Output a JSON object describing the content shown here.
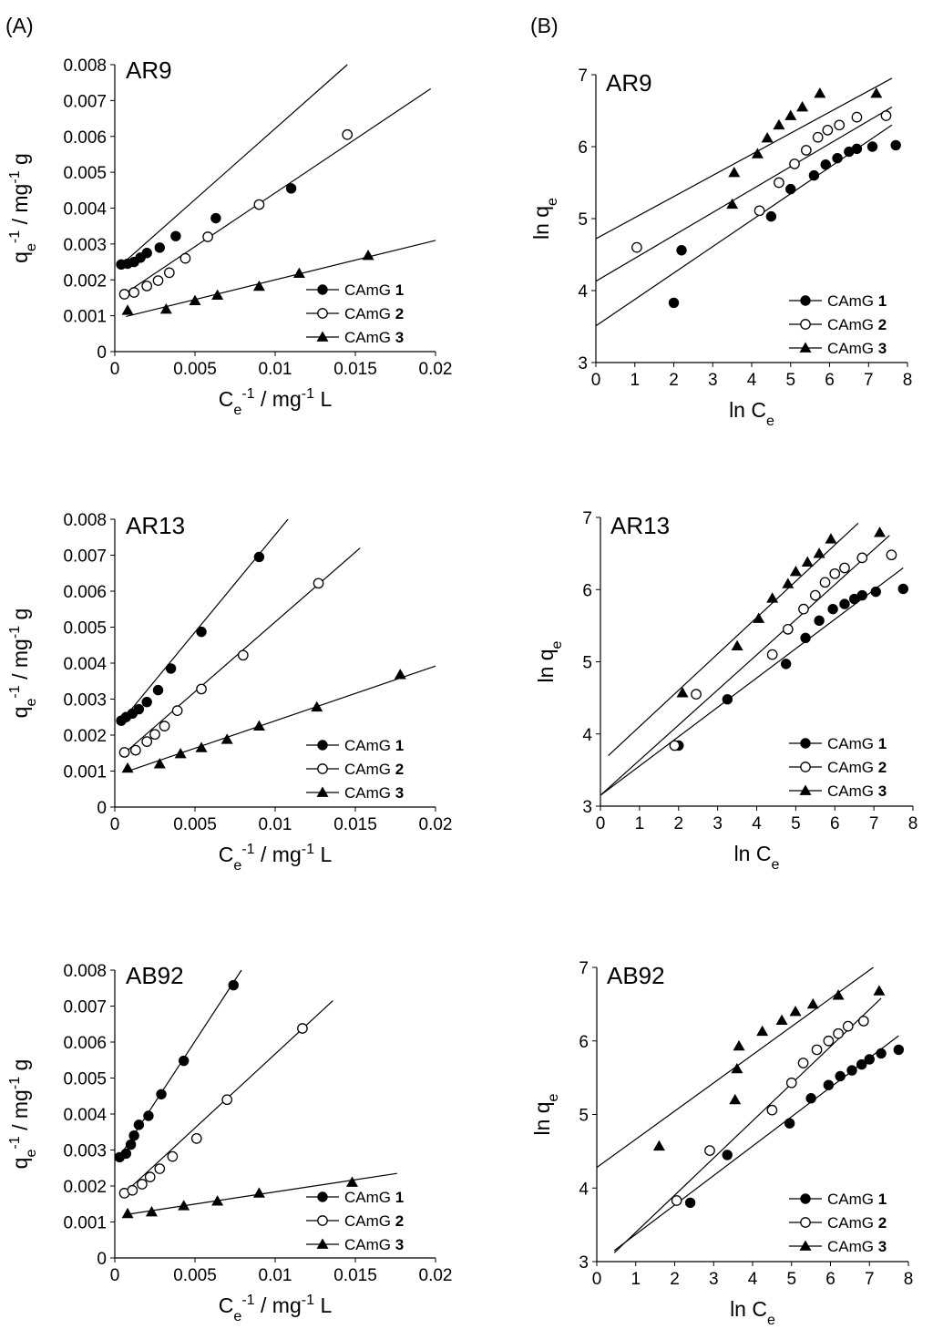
{
  "panel_labels": [
    "(A)",
    "(B)"
  ],
  "chart_data": [
    {
      "id": "A1",
      "type": "scatter",
      "title": "AR9",
      "xlabel": {
        "base": "C",
        "sub": "e",
        "sup": "-1",
        "rest": " / mg",
        "sup2": "-1",
        "rest2": "      L"
      },
      "ylabel": {
        "base": "q",
        "sub": "e",
        "sup": "-1",
        "rest": " / mg",
        "sup2": "-1",
        "rest2": " g"
      },
      "xlim": [
        0,
        0.02
      ],
      "ylim": [
        0,
        0.008
      ],
      "xticks": [
        "0",
        "0.005",
        "0.01",
        "0.015",
        "0.02"
      ],
      "yticks": [
        "0",
        "0.001",
        "0.002",
        "0.003",
        "0.004",
        "0.005",
        "0.006",
        "0.007",
        "0.008"
      ],
      "series": [
        {
          "name": "CAmG",
          "num": "1",
          "marker": "filled-circle",
          "x": [
            0.0004,
            0.0008,
            0.0012,
            0.0016,
            0.002,
            0.0028,
            0.0038,
            0.0063,
            0.011
          ],
          "y": [
            0.00243,
            0.00245,
            0.0025,
            0.00262,
            0.00275,
            0.0029,
            0.00322,
            0.00372,
            0.00455
          ],
          "fit": [
            [
              0.0003,
              0.00238
            ],
            [
              0.0145,
              0.008
            ]
          ]
        },
        {
          "name": "CAmG",
          "num": "2",
          "marker": "open-circle",
          "x": [
            0.0006,
            0.0012,
            0.002,
            0.0027,
            0.0034,
            0.0044,
            0.0058,
            0.009,
            0.0145
          ],
          "y": [
            0.0016,
            0.00165,
            0.00183,
            0.00198,
            0.0022,
            0.0026,
            0.0032,
            0.0041,
            0.00605
          ],
          "fit": [
            [
              0.0004,
              0.00155
            ],
            [
              0.0197,
              0.00733
            ]
          ]
        },
        {
          "name": "CAmG",
          "num": "3",
          "marker": "filled-triangle",
          "x": [
            0.0008,
            0.0032,
            0.005,
            0.0064,
            0.009,
            0.0115,
            0.0158
          ],
          "y": [
            0.00115,
            0.00118,
            0.00142,
            0.00157,
            0.00182,
            0.00218,
            0.00268
          ],
          "fit": [
            [
              0.0007,
              0.00098
            ],
            [
              0.02,
              0.0031
            ]
          ]
        }
      ]
    },
    {
      "id": "B1",
      "type": "scatter",
      "title": "AR9",
      "xlabel": {
        "base": "ln C",
        "sub": "e"
      },
      "ylabel": {
        "base": "ln q",
        "sub": "e"
      },
      "xlim": [
        0,
        8
      ],
      "ylim": [
        3,
        7
      ],
      "xticks": [
        "0",
        "1",
        "2",
        "3",
        "4",
        "5",
        "6",
        "7",
        "8"
      ],
      "yticks": [
        "3",
        "4",
        "5",
        "6",
        "7"
      ],
      "series": [
        {
          "name": "CAmG",
          "num": "1",
          "marker": "filled-circle",
          "x": [
            2.0,
            2.2,
            4.5,
            5.0,
            5.6,
            5.9,
            6.2,
            6.5,
            6.7,
            7.1,
            7.7
          ],
          "y": [
            3.83,
            4.56,
            5.03,
            5.41,
            5.6,
            5.75,
            5.84,
            5.93,
            5.97,
            6.0,
            6.02
          ],
          "fit": [
            [
              0.0,
              3.51
            ],
            [
              7.6,
              6.3
            ]
          ]
        },
        {
          "name": "CAmG",
          "num": "2",
          "marker": "open-circle",
          "x": [
            1.05,
            4.2,
            4.7,
            5.1,
            5.4,
            5.7,
            5.95,
            6.25,
            6.7,
            7.45
          ],
          "y": [
            4.6,
            5.11,
            5.5,
            5.76,
            5.95,
            6.13,
            6.23,
            6.3,
            6.41,
            6.43
          ],
          "fit": [
            [
              0.0,
              4.13
            ],
            [
              7.6,
              6.55
            ]
          ]
        },
        {
          "name": "CAmG",
          "num": "3",
          "marker": "filled-triangle",
          "x": [
            3.5,
            3.55,
            4.15,
            4.4,
            4.7,
            5.0,
            5.3,
            5.75,
            7.2
          ],
          "y": [
            5.2,
            5.64,
            5.9,
            6.12,
            6.3,
            6.43,
            6.55,
            6.74,
            6.74
          ],
          "fit": [
            [
              0.0,
              4.72
            ],
            [
              7.6,
              6.95
            ]
          ]
        }
      ]
    },
    {
      "id": "A2",
      "type": "scatter",
      "title": "AR13",
      "xlabel": {
        "base": "C",
        "sub": "e",
        "sup": "-1",
        "rest": " / mg",
        "sup2": "-1",
        "rest2": " L"
      },
      "ylabel": {
        "base": "q",
        "sub": "e",
        "sup": "-1",
        "rest": " / mg",
        "sup2": "-1",
        "rest2": " g"
      },
      "xlim": [
        0,
        0.02
      ],
      "ylim": [
        0,
        0.008
      ],
      "xticks": [
        "0",
        "0.005",
        "0.01",
        "0.015",
        "0.02"
      ],
      "yticks": [
        "0",
        "0.001",
        "0.002",
        "0.003",
        "0.004",
        "0.005",
        "0.006",
        "0.007",
        "0.008"
      ],
      "series": [
        {
          "name": "CAmG",
          "num": "1",
          "marker": "filled-circle",
          "x": [
            0.0004,
            0.0007,
            0.0011,
            0.0015,
            0.002,
            0.0027,
            0.0035,
            0.0054,
            0.009
          ],
          "y": [
            0.0024,
            0.0025,
            0.0026,
            0.00272,
            0.00292,
            0.00325,
            0.00385,
            0.00487,
            0.00695
          ],
          "fit": [
            [
              0.0003,
              0.00232
            ],
            [
              0.0108,
              0.008
            ]
          ]
        },
        {
          "name": "CAmG",
          "num": "2",
          "marker": "open-circle",
          "x": [
            0.0006,
            0.0013,
            0.002,
            0.0025,
            0.0031,
            0.0039,
            0.0054,
            0.008,
            0.0127
          ],
          "y": [
            0.00152,
            0.00158,
            0.00182,
            0.00202,
            0.00225,
            0.00268,
            0.00328,
            0.00422,
            0.00622
          ],
          "fit": [
            [
              0.0004,
              0.00142
            ],
            [
              0.0153,
              0.0072
            ]
          ]
        },
        {
          "name": "CAmG",
          "num": "3",
          "marker": "filled-triangle",
          "x": [
            0.0008,
            0.0028,
            0.0041,
            0.0054,
            0.007,
            0.009,
            0.0126,
            0.0178
          ],
          "y": [
            0.00108,
            0.0012,
            0.00148,
            0.00165,
            0.00188,
            0.00225,
            0.00278,
            0.00368
          ],
          "fit": [
            [
              0.0007,
              0.00098
            ],
            [
              0.02,
              0.00392
            ]
          ]
        }
      ]
    },
    {
      "id": "B2",
      "type": "scatter",
      "title": "AR13",
      "xlabel": {
        "base": "ln C",
        "sub": "e"
      },
      "ylabel": {
        "base": "ln q",
        "sub": "e"
      },
      "xlim": [
        0,
        8
      ],
      "ylim": [
        3,
        7
      ],
      "xticks": [
        "0",
        "1",
        "2",
        "3",
        "4",
        "5",
        "6",
        "7",
        "8"
      ],
      "yticks": [
        "3",
        "4",
        "5",
        "6",
        "7"
      ],
      "series": [
        {
          "name": "CAmG",
          "num": "1",
          "marker": "filled-circle",
          "x": [
            2.0,
            3.25,
            4.75,
            5.25,
            5.6,
            5.95,
            6.25,
            6.5,
            6.7,
            7.05,
            7.75
          ],
          "y": [
            3.84,
            4.48,
            4.97,
            5.33,
            5.57,
            5.73,
            5.8,
            5.87,
            5.92,
            5.97,
            6.01
          ],
          "fit": [
            [
              0.0,
              3.15
            ],
            [
              7.75,
              6.3
            ]
          ]
        },
        {
          "name": "CAmG",
          "num": "2",
          "marker": "open-circle",
          "x": [
            1.9,
            2.45,
            4.4,
            4.8,
            5.2,
            5.5,
            5.75,
            6.0,
            6.25,
            6.7,
            7.45
          ],
          "y": [
            3.84,
            4.55,
            5.1,
            5.45,
            5.73,
            5.92,
            6.1,
            6.22,
            6.3,
            6.44,
            6.48
          ],
          "fit": [
            [
              0.0,
              3.15
            ],
            [
              7.4,
              6.75
            ]
          ]
        },
        {
          "name": "CAmG",
          "num": "3",
          "marker": "filled-triangle",
          "x": [
            2.1,
            3.5,
            4.05,
            4.4,
            4.8,
            5.0,
            5.3,
            5.6,
            5.9,
            7.15
          ],
          "y": [
            4.57,
            5.22,
            5.6,
            5.88,
            6.08,
            6.25,
            6.38,
            6.5,
            6.7,
            6.79
          ],
          "fit": [
            [
              0.2,
              3.7
            ],
            [
              6.6,
              6.92
            ]
          ]
        }
      ]
    },
    {
      "id": "A3",
      "type": "scatter",
      "title": "AB92",
      "xlabel": {
        "base": "C",
        "sub": "e",
        "sup": "-1",
        "rest": " / mg",
        "sup2": "-1",
        "rest2": " L"
      },
      "ylabel": {
        "base": "q",
        "sub": "e",
        "sup": "-1",
        "rest": " / mg",
        "sup2": "-1",
        "rest2": " g"
      },
      "xlim": [
        0,
        0.02
      ],
      "ylim": [
        0,
        0.008
      ],
      "xticks": [
        "0",
        "0.005",
        "0.01",
        "0.015",
        "0.02"
      ],
      "yticks": [
        "0",
        "0.001",
        "0.002",
        "0.003",
        "0.004",
        "0.005",
        "0.006",
        "0.007",
        "0.008"
      ],
      "series": [
        {
          "name": "CAmG",
          "num": "1",
          "marker": "filled-circle",
          "x": [
            0.0003,
            0.0007,
            0.001,
            0.0012,
            0.0015,
            0.0021,
            0.0029,
            0.0043,
            0.0074
          ],
          "y": [
            0.0028,
            0.0029,
            0.00315,
            0.0034,
            0.0037,
            0.00395,
            0.00455,
            0.00548,
            0.00758
          ],
          "fit": [
            [
              0.0002,
              0.00275
            ],
            [
              0.0079,
              0.008
            ]
          ]
        },
        {
          "name": "CAmG",
          "num": "2",
          "marker": "open-circle",
          "x": [
            0.0006,
            0.0011,
            0.0017,
            0.0022,
            0.0028,
            0.0036,
            0.0051,
            0.007,
            0.0117
          ],
          "y": [
            0.0018,
            0.00188,
            0.00205,
            0.00225,
            0.00248,
            0.00282,
            0.00332,
            0.0044,
            0.00638
          ],
          "fit": [
            [
              0.0004,
              0.00172
            ],
            [
              0.0136,
              0.00715
            ]
          ]
        },
        {
          "name": "CAmG",
          "num": "3",
          "marker": "filled-triangle",
          "x": [
            0.0008,
            0.0023,
            0.0043,
            0.0064,
            0.009,
            0.0148
          ],
          "y": [
            0.00123,
            0.00128,
            0.00145,
            0.00158,
            0.0018,
            0.0021
          ],
          "fit": [
            [
              0.0006,
              0.0012
            ],
            [
              0.0176,
              0.00235
            ]
          ]
        }
      ]
    },
    {
      "id": "B3",
      "type": "scatter",
      "title": "AB92",
      "xlabel": {
        "base": "ln C",
        "sub": "e"
      },
      "ylabel": {
        "base": "ln q",
        "sub": "e"
      },
      "xlim": [
        0,
        8
      ],
      "ylim": [
        3,
        7
      ],
      "xticks": [
        "0",
        "1",
        "2",
        "3",
        "4",
        "5",
        "6",
        "7",
        "8"
      ],
      "yticks": [
        "3",
        "4",
        "5",
        "6",
        "7"
      ],
      "series": [
        {
          "name": "CAmG",
          "num": "1",
          "marker": "filled-circle",
          "x": [
            2.4,
            3.35,
            4.95,
            5.5,
            5.95,
            6.25,
            6.55,
            6.8,
            7.0,
            7.3,
            7.75
          ],
          "y": [
            3.8,
            4.45,
            4.88,
            5.22,
            5.4,
            5.52,
            5.6,
            5.68,
            5.75,
            5.83,
            5.88
          ],
          "fit": [
            [
              0.45,
              3.15
            ],
            [
              7.75,
              6.07
            ]
          ]
        },
        {
          "name": "CAmG",
          "num": "2",
          "marker": "open-circle",
          "x": [
            2.05,
            2.9,
            4.5,
            5.0,
            5.3,
            5.65,
            5.95,
            6.2,
            6.45,
            6.85
          ],
          "y": [
            3.83,
            4.51,
            5.06,
            5.43,
            5.7,
            5.88,
            6.0,
            6.1,
            6.2,
            6.27
          ],
          "fit": [
            [
              0.45,
              3.12
            ],
            [
              7.3,
              6.58
            ]
          ]
        },
        {
          "name": "CAmG",
          "num": "3",
          "marker": "filled-triangle",
          "x": [
            1.6,
            3.55,
            3.6,
            3.65,
            4.25,
            4.75,
            5.1,
            5.55,
            6.2,
            7.25
          ],
          "y": [
            4.57,
            5.2,
            5.62,
            5.93,
            6.13,
            6.28,
            6.4,
            6.5,
            6.62,
            6.68
          ],
          "fit": [
            [
              0.0,
              4.28
            ],
            [
              7.1,
              7.0
            ]
          ]
        }
      ]
    }
  ]
}
